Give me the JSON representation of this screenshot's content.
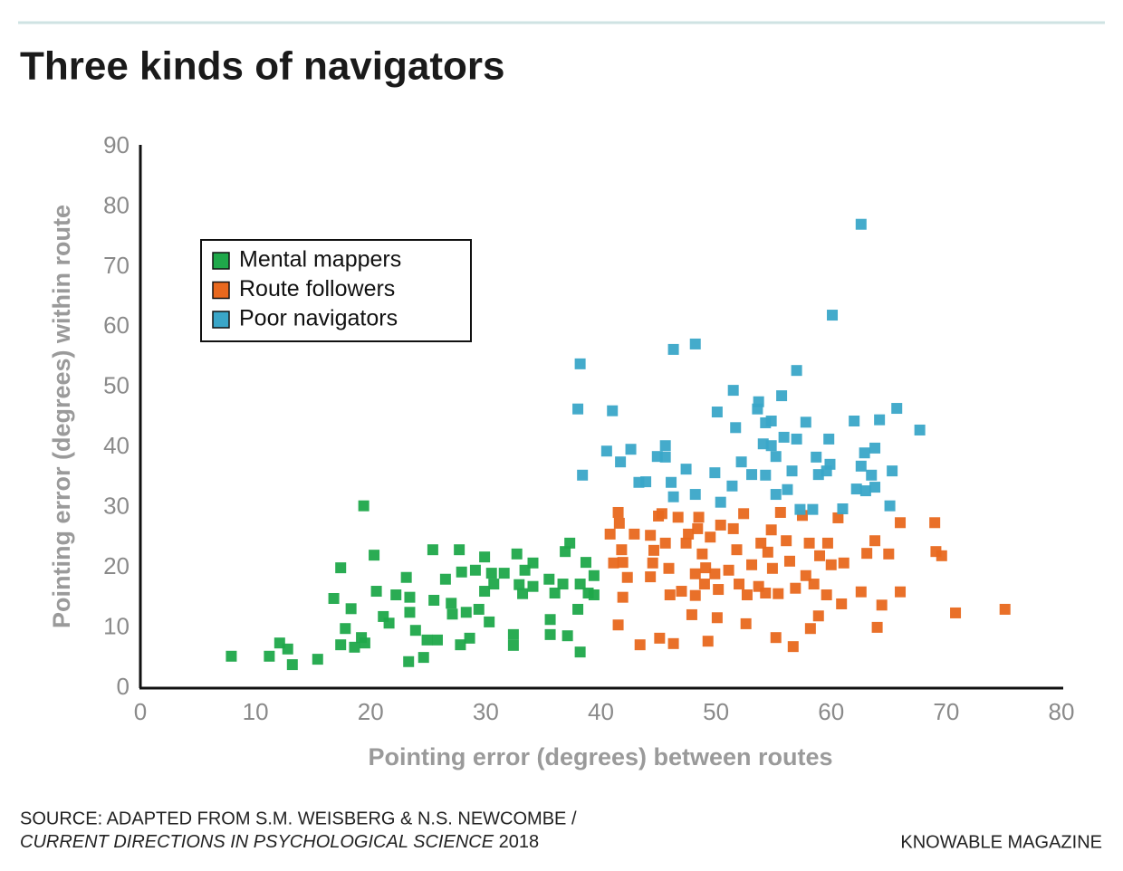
{
  "chart_data": {
    "type": "scatter",
    "title": "Three kinds of navigators",
    "x_label": "Pointing error (degrees) between routes",
    "y_label": "Pointing error (degrees) within route",
    "source": "SOURCE: ADAPTED FROM S.M. WEISBERG & N.S. NEWCOMBE /",
    "source_journal": "CURRENT DIRECTIONS IN PSYCHOLOGICAL SCIENCE",
    "source_year": "2018",
    "credit": "KNOWABLE MAGAZINE",
    "xlim": [
      0,
      80
    ],
    "xticks": [
      0,
      10,
      20,
      30,
      40,
      50,
      60,
      70,
      80
    ],
    "ylim": [
      0,
      90
    ],
    "yticks": [
      0,
      10,
      20,
      30,
      40,
      50,
      60,
      70,
      80,
      90
    ],
    "legend": "upper left",
    "series": [
      {
        "name": "Mental mappers",
        "color": "#1fa84a",
        "x": [
          7.9,
          11.2,
          12.1,
          12.8,
          13.2,
          15.4,
          16.8,
          17.4,
          17.4,
          17.8,
          18.3,
          18.6,
          19.2,
          19.4,
          19.5,
          20.3,
          20.5,
          21.1,
          21.6,
          22.2,
          23.1,
          23.3,
          23.4,
          23.4,
          23.9,
          24.6,
          24.9,
          25.4,
          25.5,
          25.8,
          26.5,
          27.0,
          27.1,
          27.7,
          27.8,
          27.9,
          28.3,
          28.6,
          29.1,
          29.4,
          29.9,
          29.9,
          30.5,
          30.7,
          31.6,
          32.4,
          32.4,
          32.7,
          32.9,
          33.2,
          33.4,
          34.1,
          34.1,
          35.5,
          35.6,
          36.0,
          36.7,
          36.9,
          37.3,
          37.1,
          38.2,
          38.0,
          38.2,
          38.7,
          38.9,
          39.4,
          39.4,
          35.6,
          30.3
        ],
        "y": [
          5.3,
          5.3,
          7.5,
          6.5,
          3.9,
          4.8,
          14.9,
          20.0,
          7.2,
          9.9,
          13.2,
          6.8,
          8.4,
          30.3,
          7.5,
          22.1,
          16.1,
          11.9,
          10.8,
          15.5,
          18.4,
          4.4,
          12.6,
          15.1,
          9.6,
          5.1,
          8.0,
          23.0,
          14.6,
          8.0,
          18.1,
          14.1,
          12.3,
          23.0,
          7.2,
          19.3,
          12.6,
          8.3,
          19.6,
          13.1,
          21.8,
          16.1,
          19.1,
          17.3,
          19.1,
          7.1,
          8.9,
          22.3,
          17.2,
          15.7,
          19.6,
          20.8,
          16.9,
          18.1,
          8.9,
          15.8,
          17.3,
          22.7,
          24.1,
          8.7,
          6.0,
          13.1,
          17.3,
          20.9,
          15.8,
          18.7,
          15.5,
          11.4,
          11.0
        ]
      },
      {
        "name": "Route followers",
        "color": "#e8681e",
        "x": [
          41.5,
          41.9,
          41.5,
          41.6,
          41.8,
          41.9,
          41.1,
          40.8,
          42.3,
          42.9,
          43.4,
          44.3,
          44.3,
          44.5,
          44.6,
          45.0,
          45.1,
          45.3,
          45.6,
          45.9,
          46.0,
          46.3,
          46.7,
          47.0,
          47.4,
          47.6,
          47.9,
          48.2,
          48.2,
          48.4,
          48.5,
          48.8,
          49.0,
          49.1,
          49.3,
          49.5,
          49.9,
          50.1,
          50.2,
          50.4,
          51.1,
          51.5,
          51.8,
          52.0,
          52.4,
          52.6,
          52.7,
          53.1,
          53.7,
          53.9,
          54.3,
          54.5,
          54.8,
          54.9,
          55.2,
          55.4,
          55.6,
          56.1,
          56.4,
          56.7,
          56.9,
          57.5,
          57.8,
          58.1,
          58.2,
          58.5,
          58.9,
          59.0,
          59.6,
          59.7,
          60.0,
          60.6,
          60.9,
          61.1,
          62.6,
          63.1,
          63.8,
          64.0,
          64.4,
          65.0,
          66.0,
          66.0,
          69.0,
          69.1,
          69.6,
          70.8,
          75.1
        ],
        "y": [
          10.5,
          15.1,
          29.2,
          27.4,
          23.0,
          20.9,
          20.8,
          25.6,
          18.4,
          25.6,
          7.2,
          25.4,
          18.5,
          20.8,
          22.9,
          28.6,
          8.3,
          29.0,
          24.1,
          19.9,
          15.5,
          7.4,
          28.4,
          16.1,
          24.1,
          25.6,
          12.2,
          15.4,
          19.0,
          26.5,
          28.4,
          22.3,
          17.3,
          20.0,
          7.8,
          25.1,
          19.0,
          11.7,
          16.4,
          27.1,
          19.6,
          26.5,
          23.0,
          17.3,
          29.0,
          10.7,
          15.5,
          20.5,
          16.9,
          24.1,
          15.8,
          22.6,
          26.3,
          19.9,
          8.4,
          15.7,
          29.2,
          24.5,
          21.1,
          6.9,
          16.6,
          28.7,
          18.7,
          24.1,
          9.9,
          17.3,
          12.0,
          22.0,
          15.5,
          24.1,
          20.5,
          28.3,
          14.0,
          20.8,
          16.0,
          22.4,
          24.5,
          10.1,
          13.8,
          22.3,
          27.5,
          16.0,
          27.5,
          22.7,
          22.0,
          12.5,
          13.1
        ]
      },
      {
        "name": "Poor navigators",
        "color": "#3aa6c8",
        "x": [
          62.6,
          60.1,
          46.3,
          48.2,
          38.2,
          38.0,
          41.0,
          38.4,
          40.5,
          41.7,
          42.6,
          43.3,
          43.9,
          44.9,
          45.6,
          45.6,
          46.1,
          46.3,
          47.4,
          48.2,
          49.9,
          50.1,
          50.4,
          51.4,
          51.5,
          51.7,
          52.2,
          53.1,
          53.6,
          53.7,
          54.1,
          54.3,
          54.3,
          54.8,
          54.8,
          55.2,
          55.2,
          55.7,
          55.9,
          56.2,
          56.6,
          57.0,
          57.0,
          57.3,
          57.8,
          58.4,
          58.7,
          58.9,
          59.8,
          59.9,
          59.6,
          61.0,
          62.0,
          62.2,
          62.6,
          62.9,
          63.0,
          63.5,
          63.8,
          63.8,
          64.2,
          65.1,
          65.3,
          65.7,
          67.7
        ],
        "y": [
          77.1,
          62.0,
          56.3,
          57.2,
          53.9,
          46.4,
          46.1,
          35.4,
          39.4,
          37.6,
          39.7,
          34.2,
          34.3,
          38.5,
          40.3,
          38.4,
          34.2,
          31.8,
          36.4,
          32.2,
          35.8,
          45.9,
          30.9,
          33.6,
          49.5,
          43.3,
          37.6,
          35.5,
          46.4,
          47.6,
          40.6,
          44.1,
          35.4,
          40.3,
          44.4,
          38.5,
          32.2,
          48.6,
          41.7,
          33.0,
          36.1,
          52.8,
          41.4,
          29.7,
          44.2,
          29.7,
          38.4,
          35.5,
          41.4,
          37.2,
          36.1,
          29.8,
          44.4,
          33.1,
          36.9,
          39.1,
          32.8,
          35.4,
          33.4,
          39.9,
          44.6,
          30.3,
          36.1,
          46.5,
          42.9
        ]
      }
    ]
  }
}
